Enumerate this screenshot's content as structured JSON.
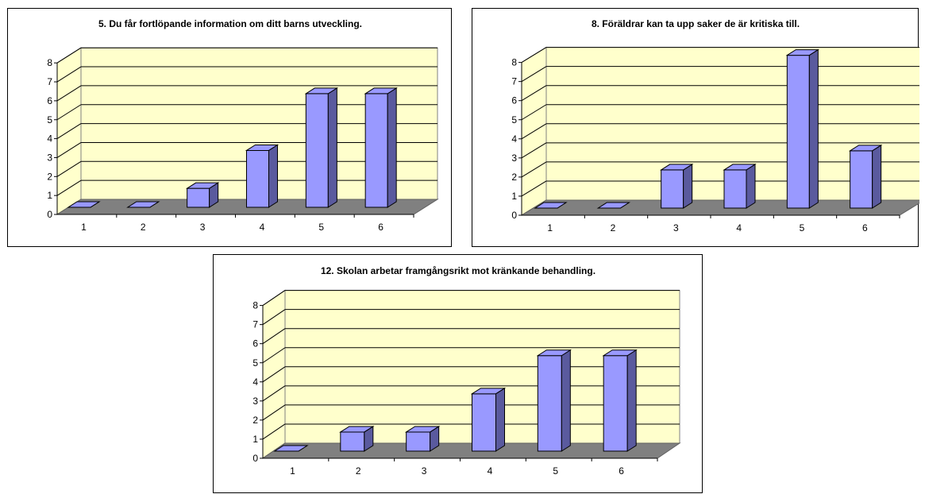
{
  "colors": {
    "plot_back": "#ffffcc",
    "floor": "#808080",
    "bar_front": "#9999ff",
    "bar_top": "#9999ff",
    "bar_side": "#5a5a9e",
    "gridline": "#000000"
  },
  "chart_data": [
    {
      "type": "bar",
      "title": "5. Du får fortlöpande information om ditt barns utveckling.",
      "categories": [
        "1",
        "2",
        "3",
        "4",
        "5",
        "6"
      ],
      "values": [
        0,
        0,
        1,
        3,
        6,
        6
      ],
      "ylim": [
        0,
        8
      ],
      "yticks": [
        "0",
        "1",
        "2",
        "3",
        "4",
        "5",
        "6",
        "7",
        "8"
      ],
      "grid": true,
      "legend": "none",
      "style": "3d-column"
    },
    {
      "type": "bar",
      "title": "8. Föräldrar kan ta upp saker de är kritiska till.",
      "categories": [
        "1",
        "2",
        "3",
        "4",
        "5",
        "6"
      ],
      "values": [
        0,
        0,
        2,
        2,
        8,
        3
      ],
      "ylim": [
        0,
        8
      ],
      "yticks": [
        "0",
        "1",
        "2",
        "3",
        "4",
        "5",
        "6",
        "7",
        "8"
      ],
      "grid": true,
      "legend": "none",
      "style": "3d-column"
    },
    {
      "type": "bar",
      "title": "12. Skolan arbetar framgångsrikt mot kränkande behandling.",
      "categories": [
        "1",
        "2",
        "3",
        "4",
        "5",
        "6"
      ],
      "values": [
        0,
        1,
        1,
        3,
        5,
        5
      ],
      "ylim": [
        0,
        8
      ],
      "yticks": [
        "0",
        "1",
        "2",
        "3",
        "4",
        "5",
        "6",
        "7",
        "8"
      ],
      "grid": true,
      "legend": "none",
      "style": "3d-column"
    }
  ]
}
